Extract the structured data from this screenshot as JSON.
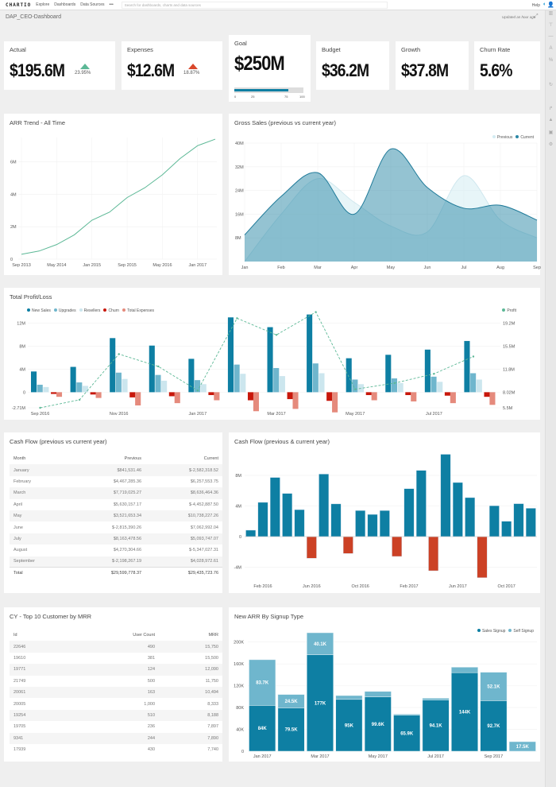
{
  "nav": {
    "logo": "CHARTIO",
    "items": [
      "Explore",
      "Dashboards",
      "Data Sources",
      "•••"
    ],
    "search_placeholder": "Search for dashboards, charts and data sources",
    "help": "Help"
  },
  "dashboard": {
    "title": "DAP_CEO-Dashboard",
    "updated": "Updated an hour ago"
  },
  "kpis": {
    "actual": {
      "label": "Actual",
      "value": "$195.6M",
      "delta": "23.95%",
      "trend": "up",
      "color": "#5cb896"
    },
    "expenses": {
      "label": "Expenses",
      "value": "$12.6M",
      "delta": "18.87%",
      "trend": "up",
      "color": "#d9472b"
    },
    "goal": {
      "label": "Goal",
      "value": "$250M",
      "progress": 78,
      "ticks": [
        "0",
        "25",
        "75",
        "100"
      ]
    },
    "budget": {
      "label": "Budget",
      "value": "$36.2M"
    },
    "growth": {
      "label": "Growth",
      "value": "$37.8M"
    },
    "churn": {
      "label": "Churn Rate",
      "value": "5.6%"
    }
  },
  "cashflow_table": {
    "title": "Cash Flow (previous vs current year)",
    "columns": [
      "Month",
      "Previous",
      "Current"
    ],
    "rows": [
      [
        "January",
        "$841,531.46",
        "$-2,582,318.52"
      ],
      [
        "February",
        "$4,467,285.36",
        "$6,257,553.75"
      ],
      [
        "March",
        "$7,719,025.27",
        "$8,636,464.36"
      ],
      [
        "April",
        "$5,630,157.17",
        "$-4,452,887.50"
      ],
      [
        "May",
        "$3,521,653.34",
        "$10,738,227.26"
      ],
      [
        "June",
        "$-2,815,390.26",
        "$7,062,992.04"
      ],
      [
        "July",
        "$8,163,478.56",
        "$5,093,747.07"
      ],
      [
        "August",
        "$4,270,304.66",
        "$-5,347,027.31"
      ],
      [
        "September",
        "$-2,198,267.19",
        "$4,028,972.61"
      ]
    ],
    "total": [
      "Total",
      "$29,599,778.37",
      "$29,435,723.76"
    ]
  },
  "customers_table": {
    "title": "CY - Top 10 Customer by MRR",
    "columns": [
      "Id",
      "User Count",
      "MRR"
    ],
    "rows": [
      [
        "22646",
        "490",
        "15,750"
      ],
      [
        "19610",
        "381",
        "15,500"
      ],
      [
        "19771",
        "124",
        "12,090"
      ],
      [
        "21749",
        "500",
        "11,750"
      ],
      [
        "20061",
        "163",
        "10,494"
      ],
      [
        "20005",
        "1,000",
        "8,333"
      ],
      [
        "19254",
        "510",
        "8,188"
      ],
      [
        "19705",
        "236",
        "7,897"
      ],
      [
        "9341",
        "244",
        "7,890"
      ],
      [
        "17939",
        "430",
        "7,740"
      ]
    ]
  },
  "chart_data": [
    {
      "id": "arr",
      "type": "line",
      "title": "ARR Trend - All Time",
      "color": "#5cb896",
      "x": [
        "Sep 2013",
        "Jan 2014",
        "May 2014",
        "Sep 2014",
        "Jan 2015",
        "May 2015",
        "Sep 2015",
        "Jan 2016",
        "May 2016",
        "Sep 2016",
        "Jan 2017",
        "Mar 2017"
      ],
      "values": [
        0.3,
        0.5,
        0.9,
        1.5,
        2.4,
        2.9,
        3.8,
        4.4,
        5.2,
        6.2,
        7.0,
        7.4
      ],
      "xticks": [
        "Sep 2013",
        "May 2014",
        "Jan 2015",
        "Sep 2015",
        "May 2016",
        "Jan 2017"
      ],
      "yticks": [
        "0",
        "2M",
        "4M",
        "6M"
      ],
      "ylim": [
        0,
        7.5
      ],
      "grid": true
    },
    {
      "id": "gross",
      "type": "area",
      "title": "Gross Sales (previous vs current year)",
      "categories": [
        "Jan",
        "Feb",
        "Mar",
        "Apr",
        "May",
        "Jun",
        "Jul",
        "Aug",
        "Sep"
      ],
      "series": [
        {
          "name": "Previous",
          "color": "#d4ecf2",
          "values": [
            0,
            16,
            28,
            20,
            12,
            10,
            29,
            14,
            8
          ]
        },
        {
          "name": "Current",
          "color": "#2a87a6",
          "values": [
            9,
            22,
            30,
            16,
            38,
            25,
            18,
            19,
            14
          ]
        }
      ],
      "yticks": [
        "8M",
        "16M",
        "24M",
        "32M",
        "40M"
      ],
      "ylim": [
        0,
        40
      ],
      "legend": "top-right"
    },
    {
      "id": "pl",
      "type": "bar",
      "title": "Total Profit/Loss",
      "categories": [
        "Sep 2016",
        "Oct 2016",
        "Nov 2016",
        "Dec 2016",
        "Jan 2017",
        "Feb 2017",
        "Mar 2017",
        "Apr 2017",
        "May 2017",
        "Jun 2017",
        "Jul 2017",
        "Aug 2017"
      ],
      "xticks": [
        "Sep 2016",
        "Nov 2016",
        "Jan 2017",
        "Mar 2017",
        "May 2017",
        "Jul 2017"
      ],
      "series": [
        {
          "name": "New Sales",
          "color": "#0e7fa3",
          "values": [
            3.6,
            4.4,
            9.4,
            8.1,
            5.8,
            13,
            11.3,
            13.5,
            5.9,
            6.5,
            7.4,
            8.9
          ]
        },
        {
          "name": "Upgrades",
          "color": "#6fb6cd",
          "values": [
            1.3,
            1.7,
            3.4,
            3.0,
            2.1,
            4.8,
            4.2,
            5.0,
            2.2,
            2.4,
            2.7,
            3.3
          ]
        },
        {
          "name": "Resellers",
          "color": "#cce6ee",
          "values": [
            0.9,
            1.1,
            2.3,
            2.0,
            1.4,
            3.2,
            2.8,
            3.3,
            1.4,
            1.6,
            1.8,
            2.2
          ]
        },
        {
          "name": "Churn",
          "color": "#c8170b",
          "values": [
            -0.3,
            -0.4,
            -0.9,
            -0.7,
            -0.5,
            -1.4,
            -1.2,
            -1.5,
            -0.5,
            -0.5,
            -0.6,
            -0.8
          ]
        },
        {
          "name": "Total Expenses",
          "color": "#e58a7c",
          "values": [
            -0.8,
            -1.0,
            -2.3,
            -1.9,
            -1.4,
            -3.3,
            -2.9,
            -3.5,
            -1.4,
            -1.6,
            -1.9,
            -2.2
          ]
        }
      ],
      "line": {
        "name": "Profit",
        "color": "#5cb896",
        "values": [
          5.5,
          6.8,
          14.2,
          12.2,
          8.3,
          20,
          17.3,
          21,
          8.5,
          9.5,
          11,
          13.8
        ]
      },
      "yticks": [
        "-2.71M",
        "0",
        "4M",
        "8M",
        "12M"
      ],
      "y2ticks": [
        "5.5M",
        "8.02M",
        "11.8M",
        "15.5M",
        "19.2M"
      ],
      "ylim": [
        -2.71,
        14
      ],
      "y2lim": [
        5.5,
        21.07
      ]
    },
    {
      "id": "cf",
      "type": "bar",
      "title": "Cash Flow (previous & current year)",
      "values": [
        0.84,
        4.47,
        7.72,
        5.63,
        3.52,
        -2.82,
        8.16,
        4.27,
        -2.2,
        3.4,
        2.9,
        3.4,
        -2.58,
        6.26,
        8.64,
        -4.45,
        10.74,
        7.06,
        5.09,
        -5.35,
        4.03,
        2.0,
        4.3,
        3.7
      ],
      "pos_color": "#0e7fa3",
      "neg_color": "#cc4125",
      "xticks": [
        "Feb 2016",
        "Jun 2016",
        "Oct 2016",
        "Feb 2017",
        "Jun 2017",
        "Oct 2017"
      ],
      "yticks": [
        "-4M",
        "0",
        "4M",
        "8M"
      ],
      "ylim": [
        -5.8,
        11
      ]
    },
    {
      "id": "arrsign",
      "type": "stacked-bar",
      "title": "New ARR By Signup Type",
      "categories": [
        "Jan 2017",
        "Feb 2017",
        "Mar 2017",
        "Apr 2017",
        "May 2017",
        "Jun 2017",
        "Jul 2017",
        "Aug 2017",
        "Sep 2017",
        "Oct 2017"
      ],
      "xticks": [
        "Jan 2017",
        "Mar 2017",
        "May 2017",
        "Jul 2017",
        "Sep 2017"
      ],
      "series": [
        {
          "name": "Sales Signup",
          "color": "#0e7fa3",
          "values": [
            84,
            79.5,
            177,
            95,
            99.6,
            65.9,
            94.1,
            144,
            92.7,
            0
          ],
          "labels": [
            "84K",
            "79.5K",
            "177K",
            "95K",
            "99.6K",
            "65.9K",
            "94.1K",
            "144K",
            "92.7K",
            ""
          ]
        },
        {
          "name": "Self Signup",
          "color": "#6fb6cd",
          "values": [
            83.7,
            24.5,
            40.1,
            7,
            10,
            2,
            3,
            10,
            52.1,
            17.5
          ],
          "labels": [
            "83.7K",
            "24.5K",
            "40.1K",
            "",
            "",
            "",
            "",
            "",
            "52.1K",
            "17.5K"
          ]
        }
      ],
      "yticks": [
        "0",
        "40K",
        "80K",
        "120K",
        "160K",
        "200K"
      ],
      "ylim": [
        0,
        220
      ],
      "legend": "top-right"
    }
  ]
}
